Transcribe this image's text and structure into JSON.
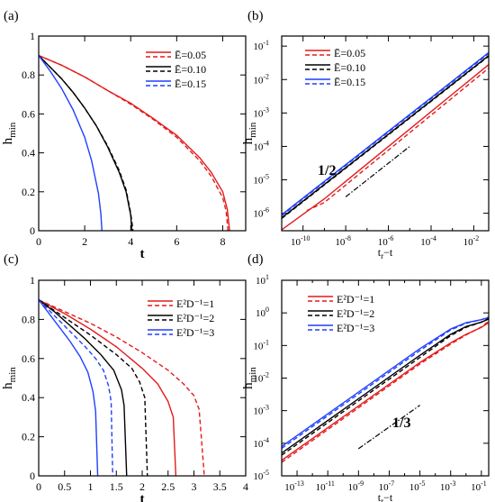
{
  "chart_data": [
    {
      "panel_label": "(a)",
      "type": "line",
      "xscale": "linear",
      "yscale": "linear",
      "xlim": [
        0,
        9
      ],
      "ylim": [
        0,
        1
      ],
      "xticks": [
        0,
        2,
        4,
        6,
        8
      ],
      "xtick_labels": [
        "0",
        "2",
        "4",
        "6",
        "8"
      ],
      "yticks": [
        0,
        0.2,
        0.4,
        0.6,
        0.8,
        1
      ],
      "ytick_labels": [
        "0",
        "0.2",
        "0.4",
        "0.6",
        "0.8",
        "1"
      ],
      "xlabel": "t",
      "ylabel": "h",
      "ylabel_sub": "min",
      "legend": {
        "placement": "top-right",
        "entries": [
          {
            "label": "Ē=0.05",
            "color": "#e41a1c"
          },
          {
            "label": "Ē=0.10",
            "color": "#000000"
          },
          {
            "label": "Ē=0.15",
            "color": "#1f3fff"
          }
        ]
      },
      "series": [
        {
          "color": "#e41a1c",
          "dash": "solid",
          "model": "root",
          "x": [
            0,
            1,
            2,
            3,
            4,
            5,
            6,
            7,
            7.5,
            8,
            8.2,
            8.3
          ],
          "y": [
            0.9,
            0.85,
            0.79,
            0.72,
            0.655,
            0.575,
            0.49,
            0.375,
            0.3,
            0.2,
            0.11,
            0
          ]
        },
        {
          "color": "#e41a1c",
          "dash": "dashed",
          "model": "root",
          "x": [
            0,
            1,
            2,
            3,
            4,
            5,
            6,
            7,
            7.5,
            8,
            8.15,
            8.23
          ],
          "y": [
            0.9,
            0.85,
            0.79,
            0.72,
            0.65,
            0.57,
            0.48,
            0.36,
            0.28,
            0.17,
            0.1,
            0
          ]
        },
        {
          "color": "#000000",
          "dash": "solid",
          "model": "root",
          "x": [
            0,
            0.5,
            1,
            1.5,
            2,
            2.5,
            3,
            3.5,
            3.8,
            4,
            4.05
          ],
          "y": [
            0.9,
            0.84,
            0.78,
            0.71,
            0.63,
            0.54,
            0.43,
            0.3,
            0.2,
            0.08,
            0
          ]
        },
        {
          "color": "#000000",
          "dash": "dashed",
          "model": "root",
          "x": [
            0,
            0.5,
            1,
            1.5,
            2,
            2.5,
            3,
            3.5,
            3.8,
            4,
            4.1
          ],
          "y": [
            0.9,
            0.84,
            0.78,
            0.71,
            0.63,
            0.54,
            0.435,
            0.31,
            0.21,
            0.09,
            0
          ]
        },
        {
          "color": "#1f3fff",
          "dash": "solid",
          "model": "root",
          "x": [
            0,
            0.5,
            1,
            1.5,
            2,
            2.3,
            2.6,
            2.7,
            2.75
          ],
          "y": [
            0.9,
            0.82,
            0.73,
            0.62,
            0.48,
            0.36,
            0.19,
            0.09,
            0
          ]
        }
      ]
    },
    {
      "panel_label": "(b)",
      "type": "line",
      "xscale": "log",
      "yscale": "log",
      "xlim": [
        1e-11,
        0.05
      ],
      "ylim": [
        3e-07,
        0.2
      ],
      "xticks": [
        1e-10,
        1e-08,
        1e-06,
        0.0001,
        0.01
      ],
      "xtick_labels": [
        [
          "10",
          "-10"
        ],
        [
          "10",
          "-8"
        ],
        [
          "10",
          "-6"
        ],
        [
          "10",
          "-4"
        ],
        [
          "10",
          "-2"
        ]
      ],
      "yticks": [
        1e-06,
        1e-05,
        0.0001,
        0.001,
        0.01,
        0.1
      ],
      "ytick_labels": [
        [
          "10",
          "-6"
        ],
        [
          "10",
          "-5"
        ],
        [
          "10",
          "-4"
        ],
        [
          "10",
          "-3"
        ],
        [
          "10",
          "-2"
        ],
        [
          "10",
          "-1"
        ]
      ],
      "xlabel": "t_r−t",
      "xlabel_parts": [
        "t",
        "r",
        "−t"
      ],
      "ylabel": "h",
      "ylabel_sub": "min",
      "annotation": {
        "text": "1/2",
        "slope": 0.5,
        "x0": 1e-08,
        "y0": 3.1e-06,
        "x1": 1e-05,
        "y1": 0.0001
      },
      "legend": {
        "placement": "top-left",
        "entries": [
          {
            "label": "Ē=0.05",
            "color": "#e41a1c"
          },
          {
            "label": "Ē=0.10",
            "color": "#000000"
          },
          {
            "label": "Ē=0.15",
            "color": "#1f3fff"
          }
        ]
      },
      "series": [
        {
          "color": "#1f3fff",
          "dash": "solid",
          "model": "power",
          "x": [
            1e-11,
            0.05
          ],
          "y": [
            9e-07,
            0.064
          ]
        },
        {
          "color": "#1f3fff",
          "dash": "dashed",
          "model": "power",
          "x": [
            1e-11,
            0.05
          ],
          "y": [
            8.5e-07,
            0.06
          ]
        },
        {
          "color": "#000000",
          "dash": "solid",
          "model": "power",
          "x": [
            1e-11,
            0.05
          ],
          "y": [
            7.3e-07,
            0.052
          ]
        },
        {
          "color": "#000000",
          "dash": "dashed",
          "model": "power",
          "x": [
            1e-11,
            0.05
          ],
          "y": [
            7e-07,
            0.05
          ]
        },
        {
          "color": "#e41a1c",
          "dash": "solid",
          "model": "power",
          "x": [
            1e-11,
            1e-09,
            0.05
          ],
          "y": [
            3.2e-07,
            2.7e-06,
            0.028
          ]
        },
        {
          "color": "#e41a1c",
          "dash": "dashed",
          "model": "power",
          "x": [
            1.5e-10,
            1e-09,
            0.05
          ],
          "y": [
            1.2e-06,
            2.1e-06,
            0.022
          ]
        }
      ]
    },
    {
      "panel_label": "(c)",
      "type": "line",
      "xscale": "linear",
      "yscale": "linear",
      "xlim": [
        0,
        4
      ],
      "ylim": [
        0,
        1
      ],
      "xticks": [
        0,
        0.5,
        1,
        1.5,
        2,
        2.5,
        3,
        3.5,
        4
      ],
      "xtick_labels": [
        "0",
        "0.5",
        "1",
        "1.5",
        "2",
        "2.5",
        "3",
        "3.5",
        "4"
      ],
      "yticks": [
        0,
        0.2,
        0.4,
        0.6,
        0.8,
        1
      ],
      "ytick_labels": [
        "0",
        "0.2",
        "0.4",
        "0.6",
        "0.8",
        "1"
      ],
      "xlabel": "t",
      "ylabel": "h",
      "ylabel_sub": "min",
      "legend": {
        "placement": "top-right",
        "entries": [
          {
            "label": "E²D⁻¹=1",
            "color": "#e41a1c"
          },
          {
            "label": "E²D⁻¹=2",
            "color": "#000000"
          },
          {
            "label": "E²D⁻¹=3",
            "color": "#1f3fff"
          }
        ]
      },
      "series": [
        {
          "color": "#e41a1c",
          "dash": "solid",
          "model": "root",
          "x": [
            0,
            0.5,
            1,
            1.5,
            2,
            2.3,
            2.5,
            2.6,
            2.65
          ],
          "y": [
            0.9,
            0.83,
            0.75,
            0.66,
            0.55,
            0.47,
            0.38,
            0.3,
            0
          ]
        },
        {
          "color": "#e41a1c",
          "dash": "dashed",
          "model": "root",
          "x": [
            0,
            0.5,
            1,
            1.5,
            2,
            2.5,
            2.8,
            3,
            3.1,
            3.2
          ],
          "y": [
            0.9,
            0.84,
            0.78,
            0.71,
            0.63,
            0.54,
            0.47,
            0.41,
            0.34,
            0
          ]
        },
        {
          "color": "#000000",
          "dash": "solid",
          "model": "root",
          "x": [
            0,
            0.3,
            0.6,
            0.9,
            1.2,
            1.45,
            1.6,
            1.65,
            1.7
          ],
          "y": [
            0.9,
            0.84,
            0.77,
            0.7,
            0.62,
            0.54,
            0.44,
            0.36,
            0
          ]
        },
        {
          "color": "#000000",
          "dash": "dashed",
          "model": "root",
          "x": [
            0,
            0.5,
            1,
            1.5,
            1.8,
            1.95,
            2.05,
            2.1
          ],
          "y": [
            0.9,
            0.81,
            0.72,
            0.62,
            0.55,
            0.48,
            0.4,
            0
          ]
        },
        {
          "color": "#1f3fff",
          "dash": "solid",
          "model": "root",
          "x": [
            0,
            0.2,
            0.4,
            0.6,
            0.8,
            0.95,
            1.05,
            1.1,
            1.14
          ],
          "y": [
            0.9,
            0.83,
            0.76,
            0.69,
            0.61,
            0.53,
            0.43,
            0.33,
            0
          ]
        },
        {
          "color": "#1f3fff",
          "dash": "dashed",
          "model": "root",
          "x": [
            0,
            0.3,
            0.6,
            0.9,
            1.1,
            1.25,
            1.35,
            1.4,
            1.43
          ],
          "y": [
            0.9,
            0.82,
            0.74,
            0.66,
            0.6,
            0.54,
            0.46,
            0.38,
            0
          ]
        }
      ]
    },
    {
      "panel_label": "(d)",
      "type": "line",
      "xscale": "log",
      "yscale": "log",
      "xlim": [
        1e-14,
        0.3
      ],
      "ylim": [
        1e-05,
        10
      ],
      "xticks": [
        1e-13,
        1e-11,
        1e-09,
        1e-07,
        1e-05,
        0.001,
        0.1
      ],
      "xtick_labels": [
        [
          "10",
          "-13"
        ],
        [
          "10",
          "-11"
        ],
        [
          "10",
          "-9"
        ],
        [
          "10",
          "-7"
        ],
        [
          "10",
          "-5"
        ],
        [
          "10",
          "-3"
        ],
        [
          "10",
          "-1"
        ]
      ],
      "yticks": [
        1e-05,
        0.0001,
        0.001,
        0.01,
        0.1,
        1,
        10
      ],
      "ytick_labels": [
        [
          "10",
          "-5"
        ],
        [
          "10",
          "-4"
        ],
        [
          "10",
          "-3"
        ],
        [
          "10",
          "-2"
        ],
        [
          "10",
          "-1"
        ],
        [
          "10",
          "0"
        ],
        [
          "10",
          "1"
        ]
      ],
      "xlabel": "t_r−t",
      "xlabel_parts": [
        "t",
        "r",
        "−t"
      ],
      "ylabel": "h",
      "ylabel_sub": "min",
      "annotation": {
        "text": "1/3",
        "slope": 0.3333,
        "x0": 1e-09,
        "y0": 6.8e-05,
        "x1": 1e-05,
        "y1": 0.00147
      },
      "legend": {
        "placement": "top-left",
        "entries": [
          {
            "label": "E²D⁻¹=1",
            "color": "#e41a1c"
          },
          {
            "label": "E²D⁻¹=2",
            "color": "#000000"
          },
          {
            "label": "E²D⁻¹=3",
            "color": "#1f3fff"
          }
        ]
      },
      "series": [
        {
          "color": "#1f3fff",
          "dash": "solid",
          "model": "power",
          "x": [
            1e-14,
            1e-05,
            0.001,
            0.01,
            0.1,
            0.3
          ],
          "y": [
            8e-05,
            0.08,
            0.32,
            0.5,
            0.62,
            0.72
          ]
        },
        {
          "color": "#1f3fff",
          "dash": "dashed",
          "model": "power",
          "x": [
            1e-14,
            1e-05,
            0.001,
            0.01,
            0.1,
            0.3
          ],
          "y": [
            7e-05,
            0.07,
            0.3,
            0.48,
            0.62,
            0.75
          ]
        },
        {
          "color": "#000000",
          "dash": "solid",
          "model": "power",
          "x": [
            1e-14,
            1e-05,
            0.001,
            0.01,
            0.1,
            0.3
          ],
          "y": [
            5e-05,
            0.05,
            0.22,
            0.38,
            0.52,
            0.65
          ]
        },
        {
          "color": "#000000",
          "dash": "dashed",
          "model": "power",
          "x": [
            1e-14,
            1e-05,
            0.001,
            0.01,
            0.1,
            0.3
          ],
          "y": [
            4.3e-05,
            0.043,
            0.2,
            0.36,
            0.52,
            0.68
          ]
        },
        {
          "color": "#e41a1c",
          "dash": "solid",
          "model": "power",
          "x": [
            1e-14,
            1e-05,
            0.001,
            0.01,
            0.1,
            0.3
          ],
          "y": [
            3e-05,
            0.03,
            0.12,
            0.22,
            0.36,
            0.5
          ]
        },
        {
          "color": "#e41a1c",
          "dash": "dashed",
          "model": "power",
          "x": [
            1e-14,
            1e-05,
            0.001,
            0.01,
            0.1,
            0.3
          ],
          "y": [
            2.6e-05,
            0.027,
            0.11,
            0.21,
            0.37,
            0.56
          ]
        }
      ]
    }
  ]
}
